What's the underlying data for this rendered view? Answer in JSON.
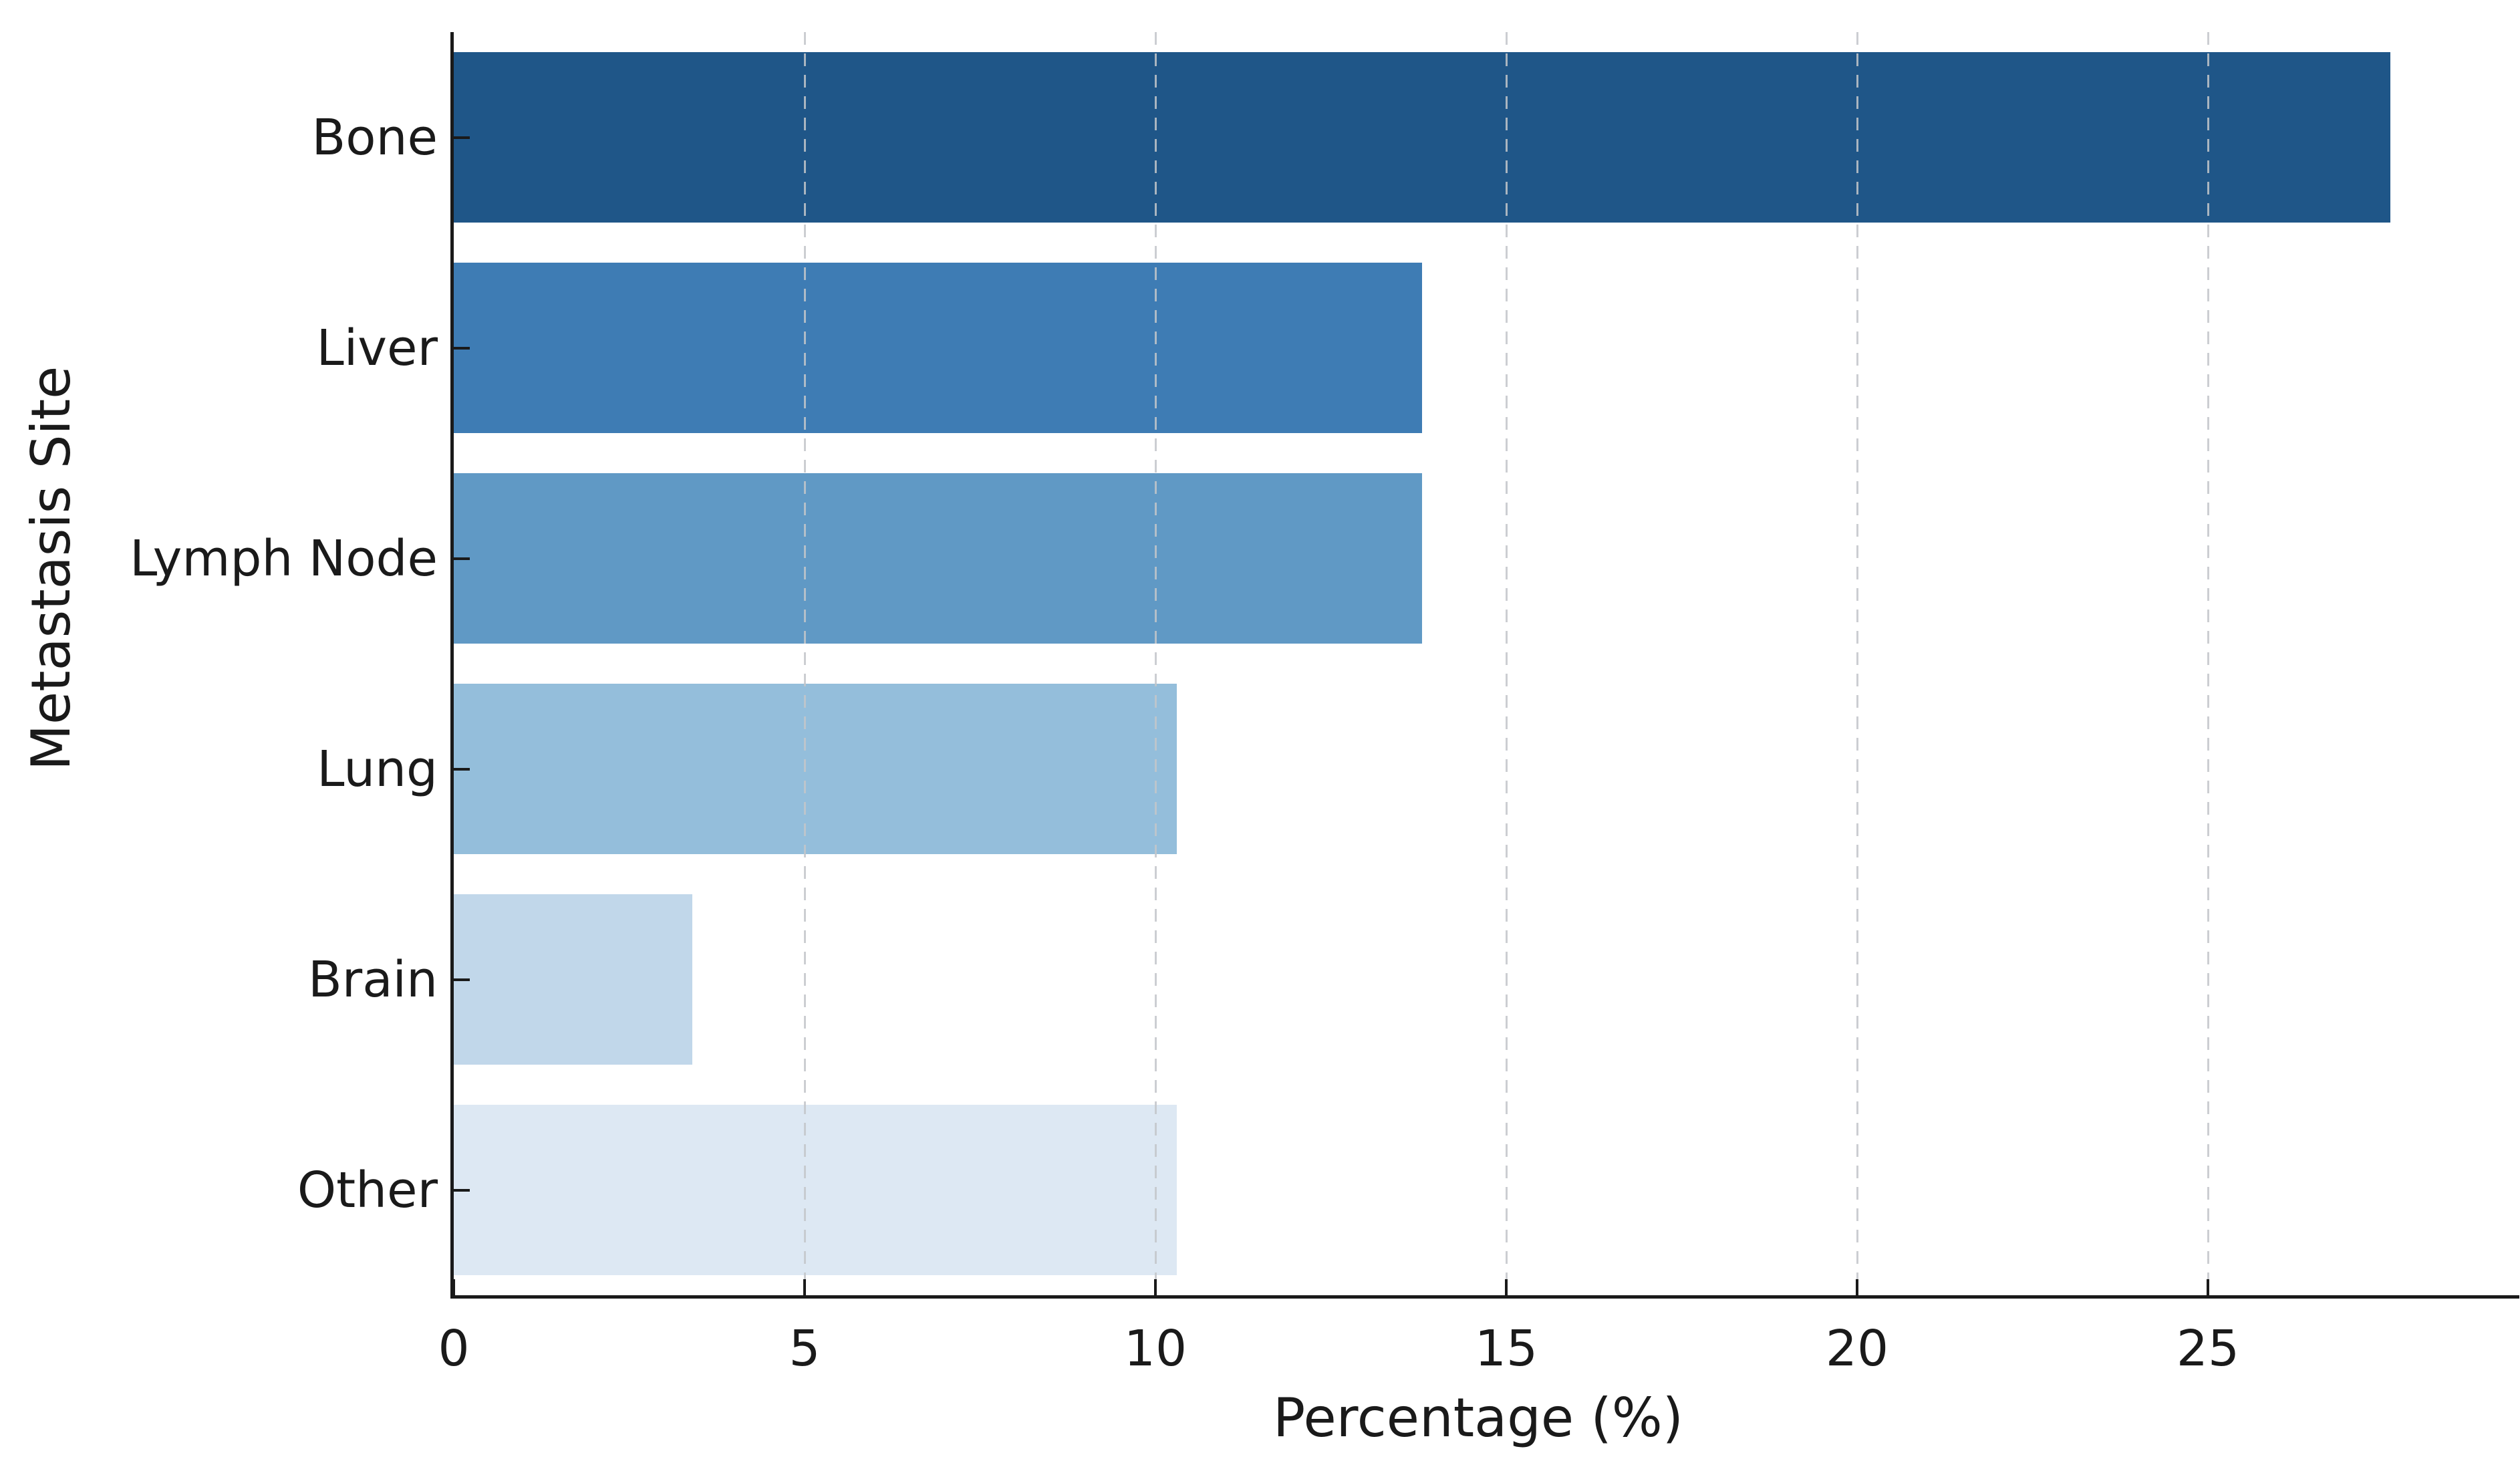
{
  "chart_data": {
    "type": "bar",
    "orientation": "horizontal",
    "title": "",
    "xlabel": "Percentage (%)",
    "ylabel": "Metastasis Site",
    "categories": [
      "Bone",
      "Liver",
      "Lymph Node",
      "Lung",
      "Brain",
      "Other"
    ],
    "values": [
      27.6,
      13.8,
      13.8,
      10.3,
      3.4,
      10.3
    ],
    "bar_colors": [
      "#1f5688",
      "#3e7cb4",
      "#6099c5",
      "#94bedb",
      "#c1d7ea",
      "#dde8f3"
    ],
    "xlim": [
      0,
      29.2
    ],
    "xticks": [
      0,
      5,
      10,
      15,
      20,
      25
    ],
    "grid": "vertical-dashed",
    "gridline_values": [
      5,
      10,
      15,
      20,
      25
    ],
    "gridline_color": "#c9c9c9",
    "axis_color": "#1a1a1a",
    "legend": "none"
  }
}
